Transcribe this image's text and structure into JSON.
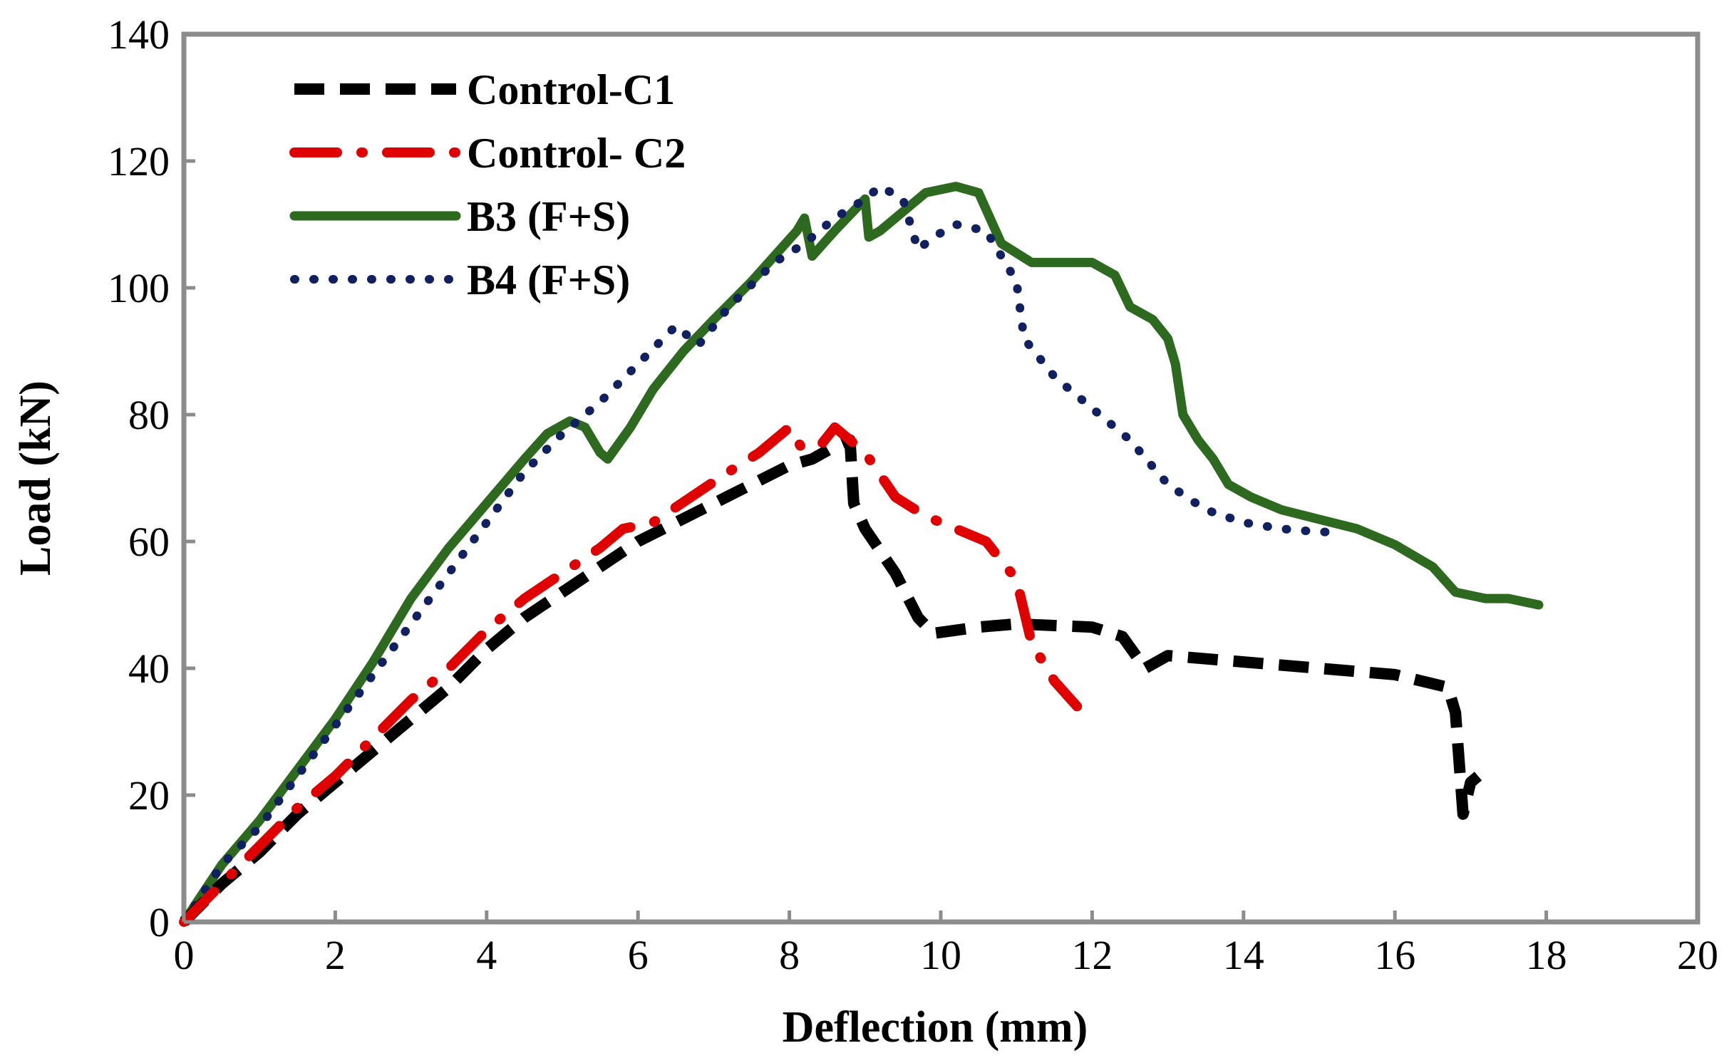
{
  "chart_data": {
    "type": "line",
    "title": "",
    "xlabel": "Deflection (mm)",
    "ylabel": "Load (kN)",
    "xlim": [
      0,
      20
    ],
    "ylim": [
      0,
      140
    ],
    "xticks": [
      0,
      2,
      4,
      6,
      8,
      10,
      12,
      14,
      16,
      18,
      20
    ],
    "yticks": [
      0,
      20,
      40,
      60,
      80,
      100,
      120,
      140
    ],
    "xtick_labels": [
      "0",
      "2",
      "4",
      "6",
      "8",
      "10",
      "12",
      "14",
      "16",
      "18",
      "20"
    ],
    "ytick_labels": [
      "0",
      "20",
      "40",
      "60",
      "80",
      "100",
      "120",
      "140"
    ],
    "grid": false,
    "legend_position": "top-left",
    "series": [
      {
        "name": "Control-C1",
        "color": "#000000",
        "style": "dashed",
        "points": [
          [
            0,
            0
          ],
          [
            0.5,
            6
          ],
          [
            1,
            11
          ],
          [
            1.5,
            17
          ],
          [
            2,
            22
          ],
          [
            2.5,
            27
          ],
          [
            3,
            32
          ],
          [
            3.5,
            37
          ],
          [
            4,
            43
          ],
          [
            4.5,
            48
          ],
          [
            5,
            52
          ],
          [
            5.5,
            56
          ],
          [
            6,
            60
          ],
          [
            6.5,
            63
          ],
          [
            7,
            66
          ],
          [
            7.5,
            69
          ],
          [
            8,
            72
          ],
          [
            8.3,
            73
          ],
          [
            8.6,
            75
          ],
          [
            8.8,
            76
          ],
          [
            8.85,
            66
          ],
          [
            9,
            62
          ],
          [
            9.4,
            55
          ],
          [
            9.7,
            48
          ],
          [
            9.9,
            45.5
          ],
          [
            10.5,
            46.5
          ],
          [
            11,
            47
          ],
          [
            12,
            46.5
          ],
          [
            12.4,
            45
          ],
          [
            12.7,
            40
          ],
          [
            13,
            42
          ],
          [
            14,
            41
          ],
          [
            15,
            40
          ],
          [
            16,
            39
          ],
          [
            16.7,
            37
          ],
          [
            16.8,
            33
          ],
          [
            16.85,
            25
          ],
          [
            16.9,
            17
          ],
          [
            17,
            22
          ],
          [
            17.1,
            23
          ]
        ]
      },
      {
        "name": "Control- C2",
        "color": "#e00000",
        "style": "dash-dot",
        "points": [
          [
            0,
            0
          ],
          [
            0.5,
            6
          ],
          [
            1,
            12
          ],
          [
            1.5,
            18
          ],
          [
            2,
            23
          ],
          [
            2.5,
            29
          ],
          [
            3,
            35
          ],
          [
            3.5,
            40
          ],
          [
            4,
            46
          ],
          [
            4.5,
            51
          ],
          [
            5,
            55
          ],
          [
            5.5,
            59
          ],
          [
            5.8,
            62
          ],
          [
            6.2,
            63
          ],
          [
            6.7,
            67
          ],
          [
            7.2,
            71
          ],
          [
            7.6,
            74
          ],
          [
            7.9,
            77
          ],
          [
            8,
            78
          ],
          [
            8.15,
            75
          ],
          [
            8.4,
            75
          ],
          [
            8.6,
            78
          ],
          [
            9,
            74
          ],
          [
            9.4,
            67
          ],
          [
            9.8,
            64
          ],
          [
            10.2,
            62
          ],
          [
            10.6,
            60
          ],
          [
            11,
            54
          ],
          [
            11.2,
            44
          ],
          [
            11.5,
            38
          ],
          [
            11.8,
            34
          ]
        ]
      },
      {
        "name": "B3 (F+S)",
        "color": "#2d6a1f",
        "style": "solid",
        "points": [
          [
            0,
            0
          ],
          [
            0.5,
            9
          ],
          [
            1,
            16
          ],
          [
            1.5,
            24
          ],
          [
            2,
            32
          ],
          [
            2.5,
            41
          ],
          [
            3,
            51
          ],
          [
            3.5,
            59
          ],
          [
            4,
            66
          ],
          [
            4.5,
            73
          ],
          [
            4.8,
            77
          ],
          [
            5.1,
            79
          ],
          [
            5.3,
            78
          ],
          [
            5.5,
            74
          ],
          [
            5.6,
            73
          ],
          [
            5.9,
            78
          ],
          [
            6.2,
            84
          ],
          [
            6.6,
            90
          ],
          [
            7,
            95
          ],
          [
            7.5,
            101
          ],
          [
            7.8,
            105
          ],
          [
            8.1,
            109
          ],
          [
            8.2,
            111
          ],
          [
            8.3,
            105
          ],
          [
            8.6,
            109
          ],
          [
            9,
            114
          ],
          [
            9.05,
            108
          ],
          [
            9.2,
            109
          ],
          [
            9.5,
            112
          ],
          [
            9.8,
            115
          ],
          [
            10.2,
            116
          ],
          [
            10.5,
            115
          ],
          [
            10.8,
            107
          ],
          [
            11.2,
            104
          ],
          [
            12,
            104
          ],
          [
            12.3,
            102
          ],
          [
            12.5,
            97
          ],
          [
            12.8,
            95
          ],
          [
            13,
            92
          ],
          [
            13.1,
            88
          ],
          [
            13.2,
            80
          ],
          [
            13.4,
            76
          ],
          [
            13.6,
            73
          ],
          [
            13.8,
            69
          ],
          [
            14.1,
            67
          ],
          [
            14.5,
            65
          ],
          [
            15,
            63.5
          ],
          [
            15.5,
            62
          ],
          [
            16,
            59.5
          ],
          [
            16.5,
            56
          ],
          [
            16.8,
            52
          ],
          [
            17.2,
            51
          ],
          [
            17.5,
            51
          ],
          [
            17.9,
            50
          ]
        ]
      },
      {
        "name": "B4 (F+S)",
        "color": "#102060",
        "style": "dotted",
        "points": [
          [
            0,
            0
          ],
          [
            0.5,
            9
          ],
          [
            1,
            15
          ],
          [
            1.5,
            23
          ],
          [
            2,
            31
          ],
          [
            2.5,
            39
          ],
          [
            3,
            47
          ],
          [
            3.5,
            55
          ],
          [
            4,
            63
          ],
          [
            4.5,
            71
          ],
          [
            5,
            77
          ],
          [
            5.5,
            82
          ],
          [
            6,
            88
          ],
          [
            6.5,
            94
          ],
          [
            6.8,
            91
          ],
          [
            7.2,
            97
          ],
          [
            7.8,
            104
          ],
          [
            8.2,
            107
          ],
          [
            8.6,
            111
          ],
          [
            9,
            114
          ],
          [
            9.2,
            116
          ],
          [
            9.5,
            114
          ],
          [
            9.7,
            106
          ],
          [
            9.9,
            108
          ],
          [
            10.2,
            110
          ],
          [
            10.6,
            109
          ],
          [
            10.8,
            105
          ],
          [
            11,
            101
          ],
          [
            11.1,
            92
          ],
          [
            11.5,
            86
          ],
          [
            12,
            81
          ],
          [
            12.5,
            76
          ],
          [
            13,
            69
          ],
          [
            13.5,
            65
          ],
          [
            14,
            63
          ],
          [
            14.5,
            62
          ],
          [
            15,
            61.5
          ],
          [
            15.3,
            61.5
          ]
        ]
      }
    ]
  }
}
